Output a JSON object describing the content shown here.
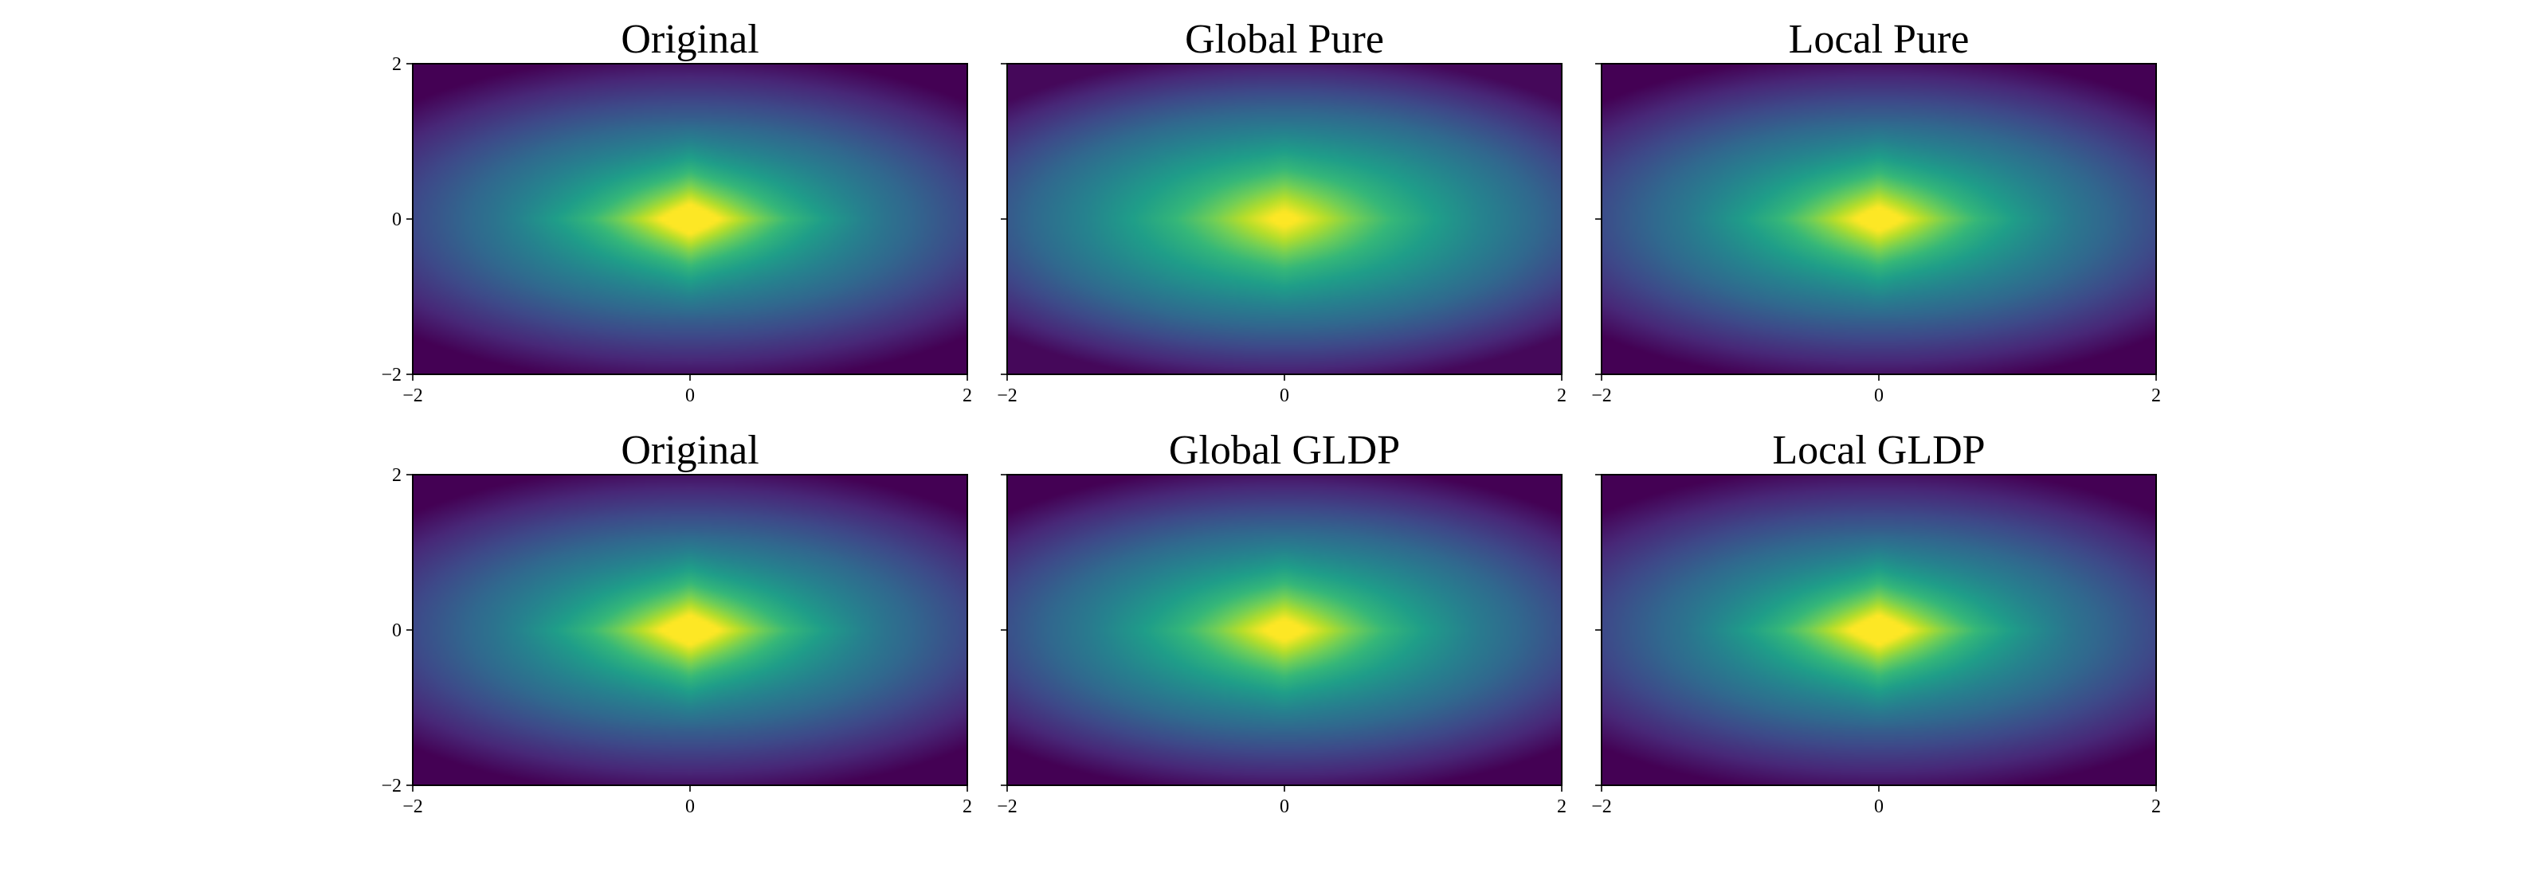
{
  "figure": {
    "colormap": "viridis",
    "colormap_stops": [
      "#440154",
      "#482878",
      "#3e4989",
      "#31688e",
      "#26828e",
      "#1f9e89",
      "#35b779",
      "#6ece58",
      "#b5de2b",
      "#fde725"
    ]
  },
  "chart_data": [
    {
      "type": "heatmap",
      "title": "Original",
      "xlim": [
        -2,
        2
      ],
      "ylim": [
        -2,
        2
      ],
      "xticks": [
        "−2",
        "0",
        "2"
      ],
      "yticks": [
        "−2",
        "0",
        "2"
      ],
      "field": {
        "peak": 0.97,
        "corner_value": 0.0,
        "radial_decay": 1.0,
        "cross_strength": 1.0
      }
    },
    {
      "type": "heatmap",
      "title": "Global Pure",
      "xlim": [
        -2,
        2
      ],
      "ylim": [
        -2,
        2
      ],
      "xticks": [
        "−2",
        "0",
        "2"
      ],
      "yticks": [
        "−2",
        "0",
        "2"
      ],
      "field": {
        "peak": 0.97,
        "corner_value": 0.02,
        "radial_decay": 1.25,
        "cross_strength": 0.55
      }
    },
    {
      "type": "heatmap",
      "title": "Local Pure",
      "xlim": [
        -2,
        2
      ],
      "ylim": [
        -2,
        2
      ],
      "xticks": [
        "−2",
        "0",
        "2"
      ],
      "yticks": [
        "−2",
        "0",
        "2"
      ],
      "field": {
        "peak": 0.97,
        "corner_value": 0.0,
        "radial_decay": 1.05,
        "cross_strength": 0.8
      }
    },
    {
      "type": "heatmap",
      "title": "Original",
      "xlim": [
        -2,
        2
      ],
      "ylim": [
        -2,
        2
      ],
      "xticks": [
        "−2",
        "0",
        "2"
      ],
      "yticks": [
        "−2",
        "0",
        "2"
      ],
      "field": {
        "peak": 0.97,
        "corner_value": 0.0,
        "radial_decay": 1.0,
        "cross_strength": 1.0
      }
    },
    {
      "type": "heatmap",
      "title": "Global GLDP",
      "xlim": [
        -2,
        2
      ],
      "ylim": [
        -2,
        2
      ],
      "xticks": [
        "−2",
        "0",
        "2"
      ],
      "yticks": [
        "−2",
        "0",
        "2"
      ],
      "field": {
        "peak": 0.97,
        "corner_value": 0.0,
        "radial_decay": 1.12,
        "cross_strength": 0.7
      }
    },
    {
      "type": "heatmap",
      "title": "Local GLDP",
      "xlim": [
        -2,
        2
      ],
      "ylim": [
        -2,
        2
      ],
      "xticks": [
        "−2",
        "0",
        "2"
      ],
      "yticks": [
        "−2",
        "0",
        "2"
      ],
      "field": {
        "peak": 0.97,
        "corner_value": 0.0,
        "radial_decay": 0.98,
        "cross_strength": 1.0
      }
    }
  ]
}
